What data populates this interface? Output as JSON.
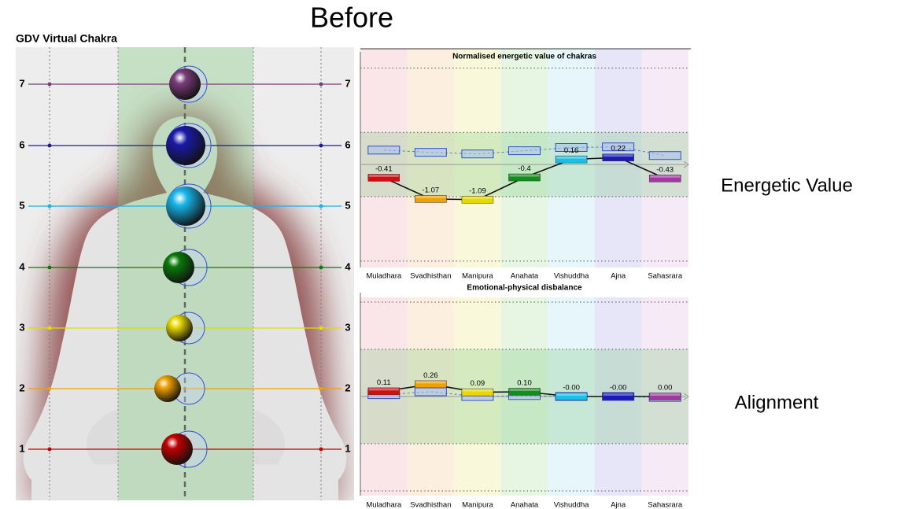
{
  "slide_title": "Before",
  "side_labels": [
    "Energetic Value",
    "Alignment"
  ],
  "chakra_panel": {
    "title": "GDV Virtual Chakra",
    "levels": [
      "1",
      "2",
      "3",
      "4",
      "5",
      "6",
      "7"
    ],
    "colors": [
      "#c00000",
      "#f0a000",
      "#e8d800",
      "#0a7a0a",
      "#18b4e8",
      "#1a1aa8",
      "#7a3d7a"
    ]
  },
  "chart_data": [
    {
      "type": "bar",
      "title": "Normalised energetic value of chakras",
      "categories": [
        "Muladhara",
        "Svadhisthan",
        "Manipura",
        "Anahata",
        "Vishuddha",
        "Ajna",
        "Sahasrara"
      ],
      "values": [
        -0.41,
        -1.07,
        -1.09,
        -0.4,
        0.16,
        0.22,
        -0.43
      ],
      "reference_values": [
        0.45,
        0.38,
        0.33,
        0.43,
        0.53,
        0.55,
        0.28
      ],
      "colors": [
        "#d01010",
        "#f0a000",
        "#e8d800",
        "#10901a",
        "#18c0e8",
        "#1a1ab8",
        "#a03aa0"
      ],
      "ylim": [
        -3.2,
        3.6
      ],
      "yticks": [
        -3,
        -1,
        1,
        3
      ],
      "grid": true
    },
    {
      "type": "bar",
      "title": "Emotional-physical disbalance",
      "categories": [
        "Muladhara",
        "Svadhisthan",
        "Manipura",
        "Anahata",
        "Vishuddha",
        "Ajna",
        "Sahasrara"
      ],
      "values": [
        0.11,
        0.26,
        0.09,
        0.1,
        0,
        0,
        0
      ],
      "value_labels": [
        "0.11",
        "0.26",
        "0.09",
        "0.10",
        "-0.00",
        "-0.00",
        "0.00"
      ],
      "reference_values": [
        0.04,
        0.1,
        0,
        0.02,
        0,
        0,
        -0.02
      ],
      "colors": [
        "#d01010",
        "#f0a000",
        "#e8d800",
        "#10901a",
        "#18c0e8",
        "#1a1ab8",
        "#a03aa0"
      ],
      "ylim": [
        -2.1,
        2.1
      ],
      "yticks": [
        -2,
        -1,
        1,
        2
      ],
      "grid": true
    }
  ]
}
